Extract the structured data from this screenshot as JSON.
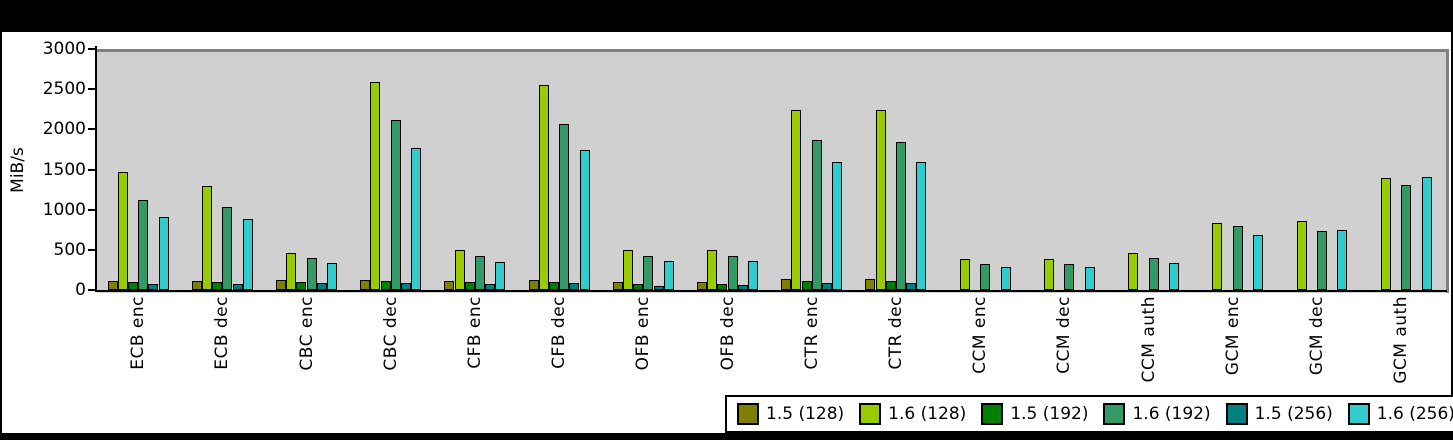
{
  "chart_data": {
    "type": "bar",
    "title": "",
    "xlabel": "",
    "ylabel": "MiB/s",
    "ylim": [
      0,
      3000
    ],
    "yticks": [
      0,
      500,
      1000,
      1500,
      2000,
      2500,
      3000
    ],
    "grid": false,
    "plot_bg": "#d0d0d0",
    "legend_position": "bottom-right",
    "categories": [
      "ECB enc",
      "ECB dec",
      "CBC enc",
      "CBC dec",
      "CFB enc",
      "CFB dec",
      "OFB enc",
      "OFB dec",
      "CTR enc",
      "CTR dec",
      "CCM enc",
      "CCM dec",
      "CCM auth",
      "GCM enc",
      "GCM dec",
      "GCM auth"
    ],
    "series": [
      {
        "name": "1.5 (128)",
        "color": "#808000",
        "values": [
          110,
          110,
          120,
          130,
          115,
          125,
          95,
          105,
          135,
          135,
          0,
          0,
          0,
          0,
          0,
          0
        ]
      },
      {
        "name": "1.6 (128)",
        "color": "#99cc00",
        "values": [
          1470,
          1300,
          465,
          2590,
          500,
          2555,
          495,
          495,
          2240,
          2240,
          380,
          380,
          460,
          840,
          860,
          1400
        ]
      },
      {
        "name": "1.5 (192)",
        "color": "#008000",
        "values": [
          95,
          95,
          105,
          110,
          100,
          105,
          75,
          80,
          110,
          110,
          0,
          0,
          0,
          0,
          0,
          0
        ]
      },
      {
        "name": "1.6 (192)",
        "color": "#339966",
        "values": [
          1120,
          1030,
          395,
          2110,
          420,
          2065,
          420,
          420,
          1865,
          1840,
          320,
          320,
          395,
          795,
          735,
          1310
        ]
      },
      {
        "name": "1.5 (256)",
        "color": "#008080",
        "values": [
          80,
          80,
          90,
          90,
          80,
          90,
          55,
          60,
          90,
          90,
          0,
          0,
          0,
          0,
          0,
          0
        ]
      },
      {
        "name": "1.6 (256)",
        "color": "#33cccc",
        "values": [
          905,
          885,
          340,
          1770,
          350,
          1740,
          355,
          355,
          1595,
          1595,
          285,
          285,
          340,
          690,
          745,
          1405
        ]
      }
    ]
  }
}
